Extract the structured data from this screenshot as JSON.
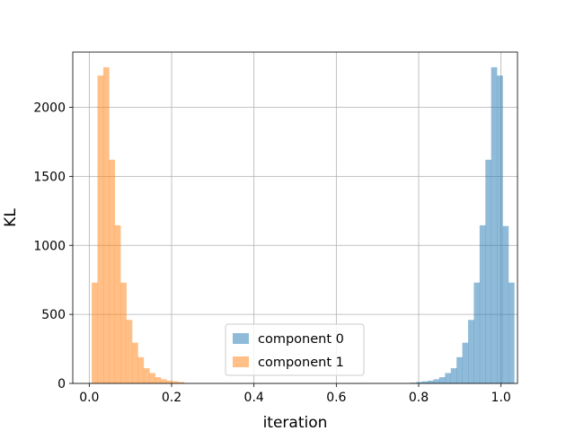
{
  "chart_data": {
    "type": "histogram",
    "xlabel": "iteration",
    "ylabel": "KL",
    "xlim": [
      -0.04,
      1.04
    ],
    "ylim": [
      0,
      2400
    ],
    "xticks": [
      0.0,
      0.2,
      0.4,
      0.6,
      0.8,
      1.0
    ],
    "xtick_labels": [
      "0.0",
      "0.2",
      "0.4",
      "0.6",
      "0.8",
      "1.0"
    ],
    "yticks": [
      0,
      500,
      1000,
      1500,
      2000
    ],
    "ytick_labels": [
      "0",
      "500",
      "1000",
      "1500",
      "2000"
    ],
    "grid": true,
    "legend_position": "lower center",
    "series": [
      {
        "name": "component 0",
        "color": "#1f77b4",
        "alpha": 0.5,
        "bins": [
          [
            0.78,
            0.794,
            5
          ],
          [
            0.794,
            0.808,
            10
          ],
          [
            0.808,
            0.822,
            15
          ],
          [
            0.822,
            0.836,
            20
          ],
          [
            0.836,
            0.85,
            30
          ],
          [
            0.85,
            0.864,
            45
          ],
          [
            0.864,
            0.878,
            75
          ],
          [
            0.878,
            0.892,
            110
          ],
          [
            0.892,
            0.906,
            190
          ],
          [
            0.906,
            0.92,
            295
          ],
          [
            0.92,
            0.934,
            460
          ],
          [
            0.934,
            0.948,
            730
          ],
          [
            0.948,
            0.962,
            1145
          ],
          [
            0.962,
            0.976,
            1620
          ],
          [
            0.976,
            0.99,
            2290
          ],
          [
            0.99,
            1.004,
            2230
          ],
          [
            1.004,
            1.018,
            1140
          ],
          [
            1.018,
            1.032,
            730
          ]
        ]
      },
      {
        "name": "component 1",
        "color": "#ff7f0e",
        "alpha": 0.5,
        "bins": [
          [
            0.006,
            0.02,
            730
          ],
          [
            0.02,
            0.034,
            2230
          ],
          [
            0.034,
            0.048,
            2290
          ],
          [
            0.048,
            0.062,
            1620
          ],
          [
            0.062,
            0.076,
            1145
          ],
          [
            0.076,
            0.09,
            730
          ],
          [
            0.09,
            0.104,
            460
          ],
          [
            0.104,
            0.118,
            295
          ],
          [
            0.118,
            0.132,
            190
          ],
          [
            0.132,
            0.146,
            110
          ],
          [
            0.146,
            0.16,
            75
          ],
          [
            0.16,
            0.174,
            45
          ],
          [
            0.174,
            0.188,
            30
          ],
          [
            0.188,
            0.202,
            20
          ],
          [
            0.202,
            0.216,
            15
          ],
          [
            0.216,
            0.23,
            10
          ]
        ]
      }
    ]
  }
}
